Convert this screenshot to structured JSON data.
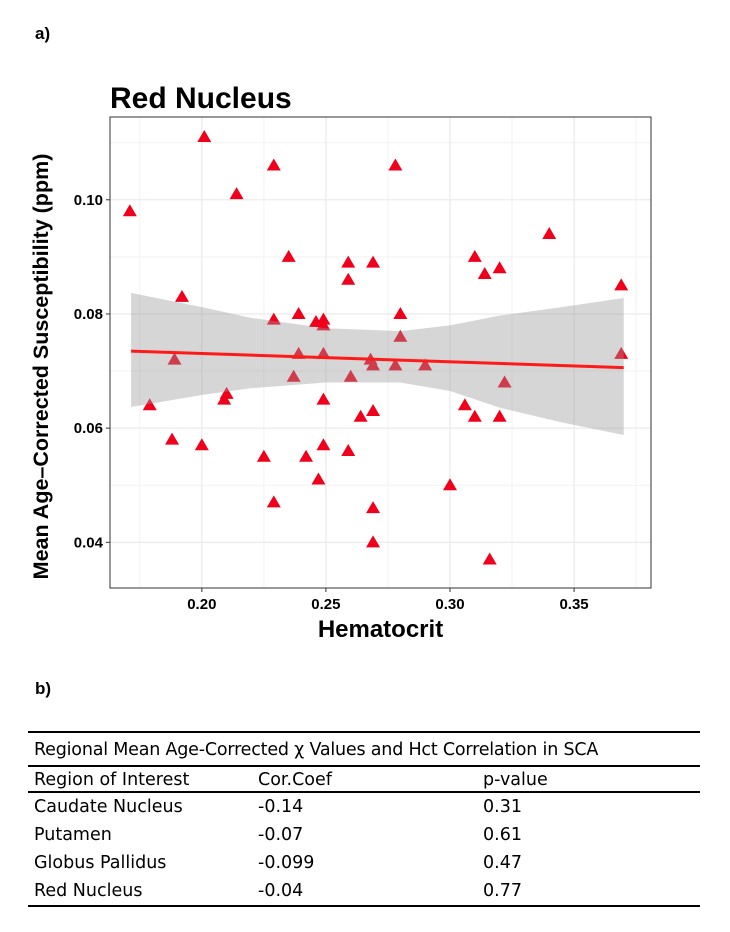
{
  "panel_a_label": "a)",
  "panel_b_label": "b)",
  "chart_data": {
    "type": "scatter",
    "title": "Red Nucleus",
    "xlabel": "Hematocrit",
    "ylabel": "Mean Age–Corrected Susceptibility (ppm)",
    "xlim": [
      0.163,
      0.381
    ],
    "ylim": [
      0.032,
      0.1145
    ],
    "xticks": [
      0.2,
      0.25,
      0.3,
      0.35
    ],
    "xtick_labels": [
      "0.20",
      "0.25",
      "0.30",
      "0.35"
    ],
    "yticks": [
      0.04,
      0.06,
      0.08,
      0.1
    ],
    "ytick_labels": [
      "0.04",
      "0.06",
      "0.08",
      "0.10"
    ],
    "grid": true,
    "marker": "triangle",
    "point_color": "#f0001a",
    "line_color": "#ff1a1a",
    "band_color": "#999999",
    "points": [
      [
        0.171,
        0.098
      ],
      [
        0.201,
        0.111
      ],
      [
        0.214,
        0.101
      ],
      [
        0.229,
        0.106
      ],
      [
        0.278,
        0.106
      ],
      [
        0.235,
        0.09
      ],
      [
        0.259,
        0.089
      ],
      [
        0.259,
        0.086
      ],
      [
        0.269,
        0.089
      ],
      [
        0.34,
        0.094
      ],
      [
        0.31,
        0.09
      ],
      [
        0.314,
        0.087
      ],
      [
        0.32,
        0.088
      ],
      [
        0.369,
        0.085
      ],
      [
        0.369,
        0.073
      ],
      [
        0.192,
        0.083
      ],
      [
        0.229,
        0.079
      ],
      [
        0.239,
        0.08
      ],
      [
        0.246,
        0.0786
      ],
      [
        0.249,
        0.079
      ],
      [
        0.249,
        0.078
      ],
      [
        0.28,
        0.08
      ],
      [
        0.28,
        0.076
      ],
      [
        0.189,
        0.072
      ],
      [
        0.239,
        0.073
      ],
      [
        0.249,
        0.073
      ],
      [
        0.268,
        0.072
      ],
      [
        0.269,
        0.071
      ],
      [
        0.278,
        0.071
      ],
      [
        0.29,
        0.071
      ],
      [
        0.237,
        0.069
      ],
      [
        0.26,
        0.069
      ],
      [
        0.179,
        0.064
      ],
      [
        0.21,
        0.066
      ],
      [
        0.209,
        0.065
      ],
      [
        0.249,
        0.065
      ],
      [
        0.264,
        0.062
      ],
      [
        0.269,
        0.063
      ],
      [
        0.188,
        0.058
      ],
      [
        0.2,
        0.057
      ],
      [
        0.225,
        0.055
      ],
      [
        0.242,
        0.055
      ],
      [
        0.249,
        0.057
      ],
      [
        0.259,
        0.056
      ],
      [
        0.247,
        0.051
      ],
      [
        0.229,
        0.047
      ],
      [
        0.269,
        0.046
      ],
      [
        0.269,
        0.04
      ],
      [
        0.322,
        0.068
      ],
      [
        0.306,
        0.064
      ],
      [
        0.31,
        0.062
      ],
      [
        0.32,
        0.062
      ],
      [
        0.3,
        0.05
      ],
      [
        0.316,
        0.037
      ]
    ],
    "fit_line": [
      [
        0.1715,
        0.0735
      ],
      [
        0.37,
        0.0706
      ]
    ],
    "confidence_band": [
      [
        0.1715,
        0.0637,
        0.0837
      ],
      [
        0.2,
        0.0658,
        0.0812
      ],
      [
        0.22,
        0.067,
        0.0793
      ],
      [
        0.25,
        0.068,
        0.0775
      ],
      [
        0.28,
        0.068,
        0.077
      ],
      [
        0.3,
        0.0665,
        0.078
      ],
      [
        0.32,
        0.0636,
        0.0797
      ],
      [
        0.345,
        0.061,
        0.0812
      ],
      [
        0.37,
        0.0588,
        0.0828
      ]
    ]
  },
  "table": {
    "caption": "Regional Mean Age-Corrected χ Values and Hct Correlation in SCA",
    "headers": [
      "Region of Interest",
      "Cor.Coef",
      "p-value"
    ],
    "rows": [
      [
        "Caudate Nucleus",
        "-0.14",
        "0.31"
      ],
      [
        "Putamen",
        "-0.07",
        "0.61"
      ],
      [
        "Globus Pallidus",
        "-0.099",
        "0.47"
      ],
      [
        "Red Nucleus",
        "-0.04",
        "0.77"
      ]
    ]
  }
}
